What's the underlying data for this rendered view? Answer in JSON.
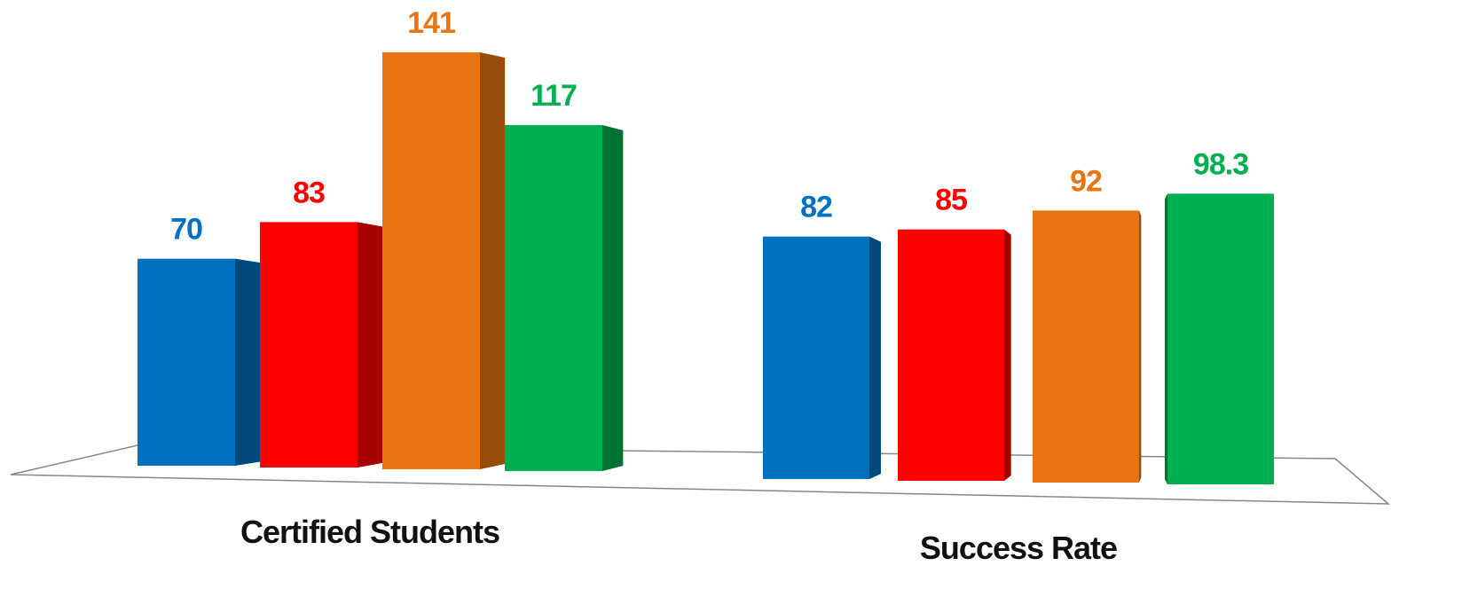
{
  "chart_data": {
    "type": "bar3d",
    "categories": [
      "Certified Students",
      "Success Rate"
    ],
    "series": [
      {
        "color": "#0070c0",
        "values": [
          70,
          82
        ]
      },
      {
        "color": "#ff0000",
        "values": [
          83,
          85
        ]
      },
      {
        "color": "#e87511",
        "values": [
          141,
          92
        ]
      },
      {
        "color": "#00b050",
        "values": [
          117,
          98.3
        ]
      }
    ]
  }
}
